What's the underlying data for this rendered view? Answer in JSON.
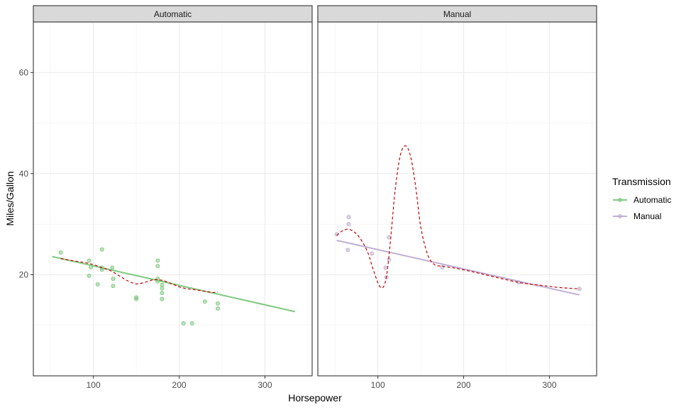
{
  "chart_data": {
    "type": "scatter",
    "xlabel": "Horsepower",
    "ylabel": "Miles/Gallon",
    "xlim": [
      30,
      355
    ],
    "ylim": [
      0,
      70
    ],
    "xticks": [
      100,
      200,
      300
    ],
    "yticks": [
      20,
      40,
      60
    ],
    "grid": true,
    "legend": {
      "title": "Transmission",
      "position": "right",
      "entries": [
        {
          "label": "Automatic",
          "color": "#7fc97f"
        },
        {
          "label": "Manual",
          "color": "#beaed4"
        }
      ]
    },
    "smooth_color": "#cc0000",
    "panels": [
      {
        "strip": "Automatic",
        "color": "#7fc97f",
        "points": [
          [
            62,
            24.4
          ],
          [
            95,
            22.8
          ],
          [
            97,
            21.5
          ],
          [
            105,
            18.1
          ],
          [
            110,
            21.4
          ],
          [
            110,
            21.0
          ],
          [
            123,
            19.2
          ],
          [
            123,
            17.8
          ],
          [
            150,
            15.5
          ],
          [
            150,
            15.2
          ],
          [
            175,
            18.7
          ],
          [
            175,
            19.2
          ],
          [
            180,
            16.4
          ],
          [
            180,
            17.3
          ],
          [
            180,
            15.2
          ],
          [
            205,
            10.4
          ],
          [
            215,
            10.4
          ],
          [
            230,
            14.7
          ],
          [
            245,
            13.3
          ],
          [
            245,
            14.3
          ],
          [
            95,
            19.8
          ],
          [
            110,
            25.0
          ],
          [
            175,
            22.8
          ],
          [
            175,
            21.7
          ],
          [
            122,
            21.4
          ],
          [
            180,
            18.0
          ]
        ],
        "linear_fit": {
          "x": [
            52,
            335
          ],
          "y": [
            23.6,
            12.7
          ]
        },
        "smooth": {
          "x": [
            62,
            75,
            90,
            100,
            110,
            120,
            130,
            140,
            150,
            160,
            170,
            180,
            190,
            200,
            210,
            220,
            230,
            240,
            245
          ],
          "y": [
            23.2,
            22.8,
            22.4,
            22.0,
            21.4,
            20.8,
            19.8,
            18.8,
            18.2,
            18.5,
            19.0,
            18.9,
            18.3,
            17.6,
            17.2,
            17.0,
            16.7,
            16.5,
            16.6
          ]
        }
      },
      {
        "strip": "Manual",
        "color": "#beaed4",
        "points": [
          [
            52,
            28.0
          ],
          [
            66,
            31.4
          ],
          [
            66,
            30.0
          ],
          [
            65,
            24.9
          ],
          [
            93,
            24.2
          ],
          [
            109,
            21.4
          ],
          [
            110,
            19.5
          ],
          [
            113,
            23.0
          ],
          [
            113,
            27.4
          ],
          [
            175,
            21.5
          ],
          [
            264,
            18.5
          ],
          [
            335,
            17.2
          ]
        ],
        "linear_fit": {
          "x": [
            52,
            335
          ],
          "y": [
            26.8,
            16.0
          ]
        },
        "smooth": {
          "x": [
            52,
            60,
            68,
            78,
            88,
            95,
            103,
            109,
            114,
            120,
            126,
            132,
            138,
            144,
            150,
            158,
            166,
            175,
            190,
            210,
            230,
            250,
            270,
            290,
            310,
            335
          ],
          "y": [
            27.8,
            28.8,
            28.9,
            27.5,
            24.5,
            20.8,
            17.5,
            18.8,
            25.5,
            36.5,
            43.5,
            45.5,
            43.5,
            37.5,
            29.5,
            24.0,
            22.0,
            21.7,
            21.3,
            20.6,
            19.8,
            19.0,
            18.3,
            17.9,
            17.5,
            17.2
          ]
        }
      }
    ]
  }
}
